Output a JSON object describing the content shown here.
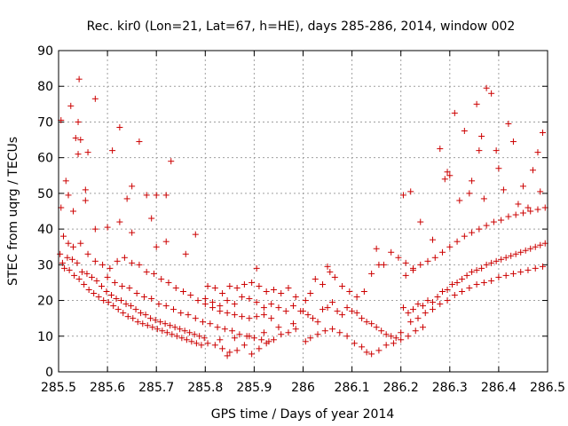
{
  "chart_data": {
    "type": "scatter",
    "title": "Rec. kir0 (Lon=21, Lat=67, h=HE), days 285-286, 2014, window 002",
    "xlabel": "GPS time / Days of year 2014",
    "ylabel": "STEC from uqrg / TECUs",
    "xlim": [
      285.5,
      286.5
    ],
    "ylim": [
      0,
      90
    ],
    "grid": true,
    "marker": "plus",
    "color": "#cc0000",
    "xticks": [
      {
        "value": 285.5,
        "label": "285.5"
      },
      {
        "value": 285.6,
        "label": "285.6"
      },
      {
        "value": 285.7,
        "label": "285.7"
      },
      {
        "value": 285.8,
        "label": "285.8"
      },
      {
        "value": 285.9,
        "label": "285.9"
      },
      {
        "value": 286.0,
        "label": "286"
      },
      {
        "value": 286.1,
        "label": "286.1"
      },
      {
        "value": 286.2,
        "label": "286.2"
      },
      {
        "value": 286.3,
        "label": "286.3"
      },
      {
        "value": 286.4,
        "label": "286.4"
      },
      {
        "value": 286.5,
        "label": "286.5"
      }
    ],
    "yticks": [
      {
        "value": 0,
        "label": "0"
      },
      {
        "value": 10,
        "label": "10"
      },
      {
        "value": 20,
        "label": "20"
      },
      {
        "value": 30,
        "label": "30"
      },
      {
        "value": 40,
        "label": "40"
      },
      {
        "value": 50,
        "label": "50"
      },
      {
        "value": 60,
        "label": "60"
      },
      {
        "value": 70,
        "label": "70"
      },
      {
        "value": 80,
        "label": "80"
      },
      {
        "value": 90,
        "label": "90"
      }
    ],
    "points": [
      [
        285.505,
        70.5
      ],
      [
        285.515,
        53.5
      ],
      [
        285.525,
        74.5
      ],
      [
        285.535,
        65.5
      ],
      [
        285.542,
        82.0
      ],
      [
        285.54,
        70.0
      ],
      [
        285.545,
        65.0
      ],
      [
        285.54,
        61.0
      ],
      [
        285.555,
        51.0
      ],
      [
        285.555,
        48.0
      ],
      [
        285.575,
        76.5
      ],
      [
        285.56,
        61.5
      ],
      [
        285.625,
        68.5
      ],
      [
        285.65,
        52.0
      ],
      [
        285.665,
        64.5
      ],
      [
        285.73,
        59.0
      ],
      [
        285.61,
        62.0
      ],
      [
        285.575,
        40.0
      ],
      [
        285.52,
        49.5
      ],
      [
        285.53,
        45.0
      ],
      [
        285.505,
        46.0
      ],
      [
        285.6,
        40.5
      ],
      [
        285.68,
        49.5
      ],
      [
        285.7,
        49.5
      ],
      [
        285.72,
        49.5
      ],
      [
        285.64,
        48.5
      ],
      [
        285.625,
        42.0
      ],
      [
        285.69,
        43.0
      ],
      [
        285.65,
        39.0
      ],
      [
        285.7,
        35.0
      ],
      [
        285.76,
        33.0
      ],
      [
        285.78,
        38.5
      ],
      [
        285.72,
        36.5
      ],
      [
        285.503,
        33.0
      ],
      [
        285.508,
        30.5
      ],
      [
        285.512,
        29.0
      ],
      [
        285.518,
        32.0
      ],
      [
        285.522,
        28.5
      ],
      [
        285.528,
        31.5
      ],
      [
        285.532,
        27.0
      ],
      [
        285.538,
        30.5
      ],
      [
        285.542,
        26.0
      ],
      [
        285.548,
        28.0
      ],
      [
        285.552,
        24.5
      ],
      [
        285.558,
        27.5
      ],
      [
        285.562,
        23.0
      ],
      [
        285.568,
        26.5
      ],
      [
        285.572,
        22.0
      ],
      [
        285.578,
        25.5
      ],
      [
        285.582,
        21.0
      ],
      [
        285.588,
        24.0
      ],
      [
        285.592,
        20.0
      ],
      [
        285.598,
        22.5
      ],
      [
        285.602,
        19.5
      ],
      [
        285.608,
        21.5
      ],
      [
        285.612,
        18.5
      ],
      [
        285.618,
        20.5
      ],
      [
        285.622,
        17.5
      ],
      [
        285.628,
        20.0
      ],
      [
        285.632,
        16.5
      ],
      [
        285.638,
        19.0
      ],
      [
        285.642,
        15.5
      ],
      [
        285.648,
        18.5
      ],
      [
        285.652,
        15.0
      ],
      [
        285.658,
        17.5
      ],
      [
        285.662,
        14.0
      ],
      [
        285.668,
        16.5
      ],
      [
        285.672,
        13.5
      ],
      [
        285.678,
        16.0
      ],
      [
        285.682,
        13.0
      ],
      [
        285.688,
        15.0
      ],
      [
        285.692,
        12.5
      ],
      [
        285.698,
        14.5
      ],
      [
        285.702,
        12.0
      ],
      [
        285.708,
        14.0
      ],
      [
        285.712,
        11.5
      ],
      [
        285.718,
        13.5
      ],
      [
        285.722,
        11.0
      ],
      [
        285.728,
        13.0
      ],
      [
        285.732,
        10.5
      ],
      [
        285.738,
        12.5
      ],
      [
        285.742,
        10.0
      ],
      [
        285.748,
        12.0
      ],
      [
        285.752,
        9.5
      ],
      [
        285.758,
        11.5
      ],
      [
        285.762,
        9.0
      ],
      [
        285.768,
        11.0
      ],
      [
        285.772,
        8.5
      ],
      [
        285.778,
        10.5
      ],
      [
        285.782,
        8.0
      ],
      [
        285.788,
        10.0
      ],
      [
        285.792,
        7.5
      ],
      [
        285.798,
        9.5
      ],
      [
        285.51,
        38.0
      ],
      [
        285.52,
        36.0
      ],
      [
        285.53,
        35.0
      ],
      [
        285.545,
        36.0
      ],
      [
        285.56,
        33.0
      ],
      [
        285.575,
        31.0
      ],
      [
        285.59,
        30.0
      ],
      [
        285.605,
        29.0
      ],
      [
        285.62,
        31.0
      ],
      [
        285.635,
        32.0
      ],
      [
        285.65,
        30.5
      ],
      [
        285.665,
        30.0
      ],
      [
        285.68,
        28.0
      ],
      [
        285.695,
        27.5
      ],
      [
        285.71,
        26.0
      ],
      [
        285.725,
        25.0
      ],
      [
        285.74,
        23.5
      ],
      [
        285.755,
        22.5
      ],
      [
        285.77,
        21.5
      ],
      [
        285.785,
        20.0
      ],
      [
        285.8,
        19.0
      ],
      [
        285.815,
        18.0
      ],
      [
        285.83,
        17.0
      ],
      [
        285.845,
        16.5
      ],
      [
        285.86,
        16.0
      ],
      [
        285.875,
        15.5
      ],
      [
        285.89,
        15.0
      ],
      [
        285.905,
        15.5
      ],
      [
        285.92,
        16.0
      ],
      [
        285.935,
        15.0
      ],
      [
        285.6,
        26.5
      ],
      [
        285.615,
        25.0
      ],
      [
        285.63,
        24.0
      ],
      [
        285.645,
        23.5
      ],
      [
        285.66,
        22.0
      ],
      [
        285.675,
        21.0
      ],
      [
        285.69,
        20.5
      ],
      [
        285.705,
        19.0
      ],
      [
        285.72,
        18.5
      ],
      [
        285.735,
        17.5
      ],
      [
        285.75,
        16.5
      ],
      [
        285.765,
        16.0
      ],
      [
        285.78,
        15.0
      ],
      [
        285.795,
        14.0
      ],
      [
        285.81,
        13.5
      ],
      [
        285.825,
        12.5
      ],
      [
        285.84,
        12.0
      ],
      [
        285.855,
        11.5
      ],
      [
        285.87,
        10.5
      ],
      [
        285.885,
        10.0
      ],
      [
        285.9,
        9.5
      ],
      [
        285.915,
        9.0
      ],
      [
        285.93,
        8.5
      ],
      [
        285.805,
        24.0
      ],
      [
        285.82,
        23.5
      ],
      [
        285.835,
        22.0
      ],
      [
        285.85,
        24.0
      ],
      [
        285.865,
        23.5
      ],
      [
        285.88,
        24.5
      ],
      [
        285.895,
        25.0
      ],
      [
        285.91,
        24.0
      ],
      [
        285.925,
        22.5
      ],
      [
        285.94,
        23.0
      ],
      [
        285.955,
        22.0
      ],
      [
        285.97,
        23.5
      ],
      [
        285.985,
        21.0
      ],
      [
        285.905,
        29.0
      ],
      [
        285.8,
        20.5
      ],
      [
        285.815,
        19.5
      ],
      [
        285.83,
        18.5
      ],
      [
        285.845,
        20.0
      ],
      [
        285.86,
        19.0
      ],
      [
        285.875,
        21.0
      ],
      [
        285.89,
        20.5
      ],
      [
        285.905,
        19.5
      ],
      [
        285.92,
        18.0
      ],
      [
        285.935,
        19.0
      ],
      [
        285.95,
        18.0
      ],
      [
        285.965,
        17.0
      ],
      [
        285.98,
        18.5
      ],
      [
        285.995,
        17.0
      ],
      [
        285.805,
        8.0
      ],
      [
        285.82,
        7.5
      ],
      [
        285.835,
        6.5
      ],
      [
        285.85,
        5.5
      ],
      [
        285.845,
        4.5
      ],
      [
        285.865,
        6.0
      ],
      [
        285.88,
        7.5
      ],
      [
        285.895,
        5.0
      ],
      [
        285.91,
        6.5
      ],
      [
        285.925,
        8.0
      ],
      [
        285.94,
        9.0
      ],
      [
        285.955,
        10.5
      ],
      [
        285.97,
        11.0
      ],
      [
        285.985,
        12.0
      ],
      [
        285.83,
        9.0
      ],
      [
        285.86,
        9.5
      ],
      [
        285.89,
        10.0
      ],
      [
        285.92,
        11.0
      ],
      [
        285.95,
        12.5
      ],
      [
        285.98,
        13.5
      ],
      [
        286.005,
        20.0
      ],
      [
        286.015,
        22.0
      ],
      [
        286.025,
        26.0
      ],
      [
        286.04,
        24.5
      ],
      [
        286.05,
        29.5
      ],
      [
        286.055,
        28.0
      ],
      [
        286.065,
        26.5
      ],
      [
        286.08,
        24.0
      ],
      [
        286.095,
        22.5
      ],
      [
        286.11,
        21.0
      ],
      [
        286.125,
        22.5
      ],
      [
        286.14,
        27.5
      ],
      [
        286.155,
        30.0
      ],
      [
        286.165,
        30.0
      ],
      [
        286.18,
        33.5
      ],
      [
        286.195,
        32.0
      ],
      [
        286.21,
        30.5
      ],
      [
        286.225,
        29.0
      ],
      [
        286.15,
        34.5
      ],
      [
        286.0,
        17.0
      ],
      [
        286.01,
        16.0
      ],
      [
        286.02,
        15.0
      ],
      [
        286.03,
        14.0
      ],
      [
        286.04,
        17.5
      ],
      [
        286.05,
        18.0
      ],
      [
        286.06,
        19.5
      ],
      [
        286.07,
        17.0
      ],
      [
        286.08,
        16.0
      ],
      [
        286.09,
        18.0
      ],
      [
        286.1,
        17.0
      ],
      [
        286.11,
        16.5
      ],
      [
        286.12,
        15.0
      ],
      [
        286.13,
        14.0
      ],
      [
        286.14,
        13.5
      ],
      [
        286.15,
        12.5
      ],
      [
        286.16,
        11.5
      ],
      [
        286.17,
        10.5
      ],
      [
        286.18,
        10.0
      ],
      [
        286.19,
        9.5
      ],
      [
        286.2,
        11.0
      ],
      [
        286.005,
        8.5
      ],
      [
        286.015,
        9.5
      ],
      [
        286.03,
        10.5
      ],
      [
        286.045,
        11.5
      ],
      [
        286.06,
        12.0
      ],
      [
        286.075,
        11.0
      ],
      [
        286.09,
        10.0
      ],
      [
        286.105,
        8.0
      ],
      [
        286.12,
        7.0
      ],
      [
        286.13,
        5.5
      ],
      [
        286.14,
        5.0
      ],
      [
        286.155,
        6.0
      ],
      [
        286.17,
        7.5
      ],
      [
        286.185,
        8.0
      ],
      [
        286.2,
        9.0
      ],
      [
        286.215,
        10.0
      ],
      [
        286.23,
        11.5
      ],
      [
        286.245,
        12.5
      ],
      [
        286.205,
        18.0
      ],
      [
        286.215,
        16.5
      ],
      [
        286.225,
        17.5
      ],
      [
        286.235,
        19.0
      ],
      [
        286.245,
        18.5
      ],
      [
        286.255,
        20.0
      ],
      [
        286.265,
        19.5
      ],
      [
        286.275,
        21.0
      ],
      [
        286.285,
        22.5
      ],
      [
        286.295,
        23.0
      ],
      [
        286.305,
        24.5
      ],
      [
        286.315,
        25.0
      ],
      [
        286.325,
        26.0
      ],
      [
        286.335,
        27.0
      ],
      [
        286.345,
        28.0
      ],
      [
        286.355,
        28.5
      ],
      [
        286.365,
        29.0
      ],
      [
        286.375,
        30.0
      ],
      [
        286.385,
        30.5
      ],
      [
        286.395,
        31.0
      ],
      [
        286.405,
        31.5
      ],
      [
        286.415,
        32.0
      ],
      [
        286.425,
        32.5
      ],
      [
        286.435,
        33.0
      ],
      [
        286.445,
        33.5
      ],
      [
        286.455,
        34.0
      ],
      [
        286.465,
        34.5
      ],
      [
        286.475,
        35.0
      ],
      [
        286.485,
        35.5
      ],
      [
        286.495,
        36.0
      ],
      [
        286.21,
        27.0
      ],
      [
        286.225,
        28.5
      ],
      [
        286.24,
        30.0
      ],
      [
        286.255,
        31.0
      ],
      [
        286.27,
        32.0
      ],
      [
        286.285,
        33.5
      ],
      [
        286.3,
        35.0
      ],
      [
        286.315,
        36.5
      ],
      [
        286.33,
        38.0
      ],
      [
        286.345,
        39.0
      ],
      [
        286.36,
        40.0
      ],
      [
        286.375,
        41.0
      ],
      [
        286.39,
        42.0
      ],
      [
        286.405,
        42.5
      ],
      [
        286.42,
        43.5
      ],
      [
        286.435,
        44.0
      ],
      [
        286.45,
        44.5
      ],
      [
        286.465,
        45.0
      ],
      [
        286.48,
        45.5
      ],
      [
        286.495,
        46.0
      ],
      [
        286.22,
        14.0
      ],
      [
        286.235,
        15.0
      ],
      [
        286.25,
        16.5
      ],
      [
        286.265,
        17.5
      ],
      [
        286.28,
        19.0
      ],
      [
        286.295,
        20.0
      ],
      [
        286.31,
        21.5
      ],
      [
        286.325,
        22.5
      ],
      [
        286.34,
        23.5
      ],
      [
        286.355,
        24.5
      ],
      [
        286.37,
        25.0
      ],
      [
        286.385,
        25.5
      ],
      [
        286.4,
        26.5
      ],
      [
        286.415,
        27.0
      ],
      [
        286.43,
        27.5
      ],
      [
        286.445,
        28.0
      ],
      [
        286.46,
        28.5
      ],
      [
        286.475,
        29.0
      ],
      [
        286.49,
        29.5
      ],
      [
        286.205,
        49.5
      ],
      [
        286.22,
        50.5
      ],
      [
        286.24,
        42.0
      ],
      [
        286.265,
        37.0
      ],
      [
        286.28,
        62.5
      ],
      [
        286.29,
        54.0
      ],
      [
        286.295,
        56.0
      ],
      [
        286.31,
        72.5
      ],
      [
        286.33,
        67.5
      ],
      [
        286.345,
        53.5
      ],
      [
        286.355,
        75.0
      ],
      [
        286.36,
        62.0
      ],
      [
        286.365,
        66.0
      ],
      [
        286.375,
        79.5
      ],
      [
        286.385,
        78.0
      ],
      [
        286.395,
        62.0
      ],
      [
        286.4,
        57.0
      ],
      [
        286.42,
        69.5
      ],
      [
        286.43,
        64.5
      ],
      [
        286.45,
        52.0
      ],
      [
        286.47,
        56.5
      ],
      [
        286.48,
        61.5
      ],
      [
        286.49,
        67.0
      ],
      [
        286.485,
        50.5
      ],
      [
        286.3,
        55.0
      ],
      [
        286.32,
        48.0
      ],
      [
        286.34,
        50.0
      ],
      [
        286.37,
        48.5
      ],
      [
        286.41,
        51.0
      ],
      [
        286.44,
        47.0
      ],
      [
        286.46,
        46.0
      ]
    ]
  }
}
